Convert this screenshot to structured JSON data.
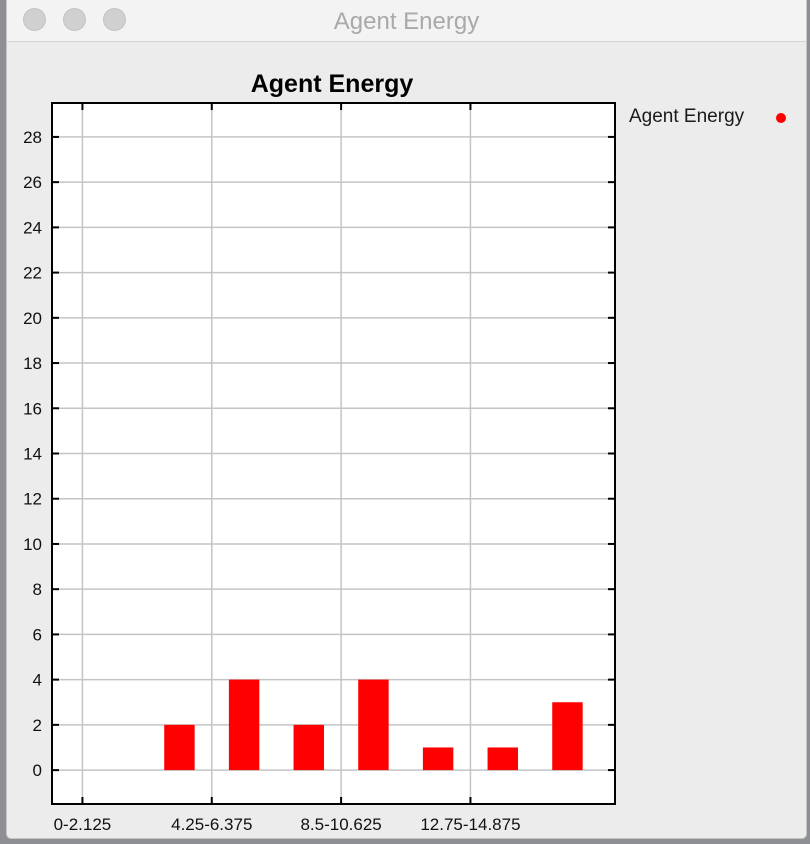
{
  "window": {
    "title": "Agent Energy"
  },
  "legend": {
    "label": "Agent Energy",
    "color": "#ff0000"
  },
  "chart_data": {
    "type": "bar",
    "title": "Agent Energy",
    "xlabel": "",
    "ylabel": "",
    "ylim": [
      -1.5,
      29.5
    ],
    "yticks": [
      0,
      2,
      4,
      6,
      8,
      10,
      12,
      14,
      16,
      18,
      20,
      22,
      24,
      26,
      28
    ],
    "x_tick_labels": [
      "0-2.125",
      "4.25-6.375",
      "8.5-10.625",
      "12.75-14.875"
    ],
    "grid": true,
    "legend_position": "right",
    "series": [
      {
        "name": "Agent Energy",
        "color": "#ff0000",
        "bins": [
          {
            "start": 2.125,
            "end": 4.25,
            "value": 2
          },
          {
            "start": 4.25,
            "end": 6.375,
            "value": 4
          },
          {
            "start": 6.375,
            "end": 8.5,
            "value": 2
          },
          {
            "start": 8.5,
            "end": 10.625,
            "value": 4
          },
          {
            "start": 10.625,
            "end": 12.75,
            "value": 1
          },
          {
            "start": 12.75,
            "end": 14.875,
            "value": 1
          },
          {
            "start": 14.875,
            "end": 17.0,
            "value": 3
          }
        ]
      }
    ]
  }
}
